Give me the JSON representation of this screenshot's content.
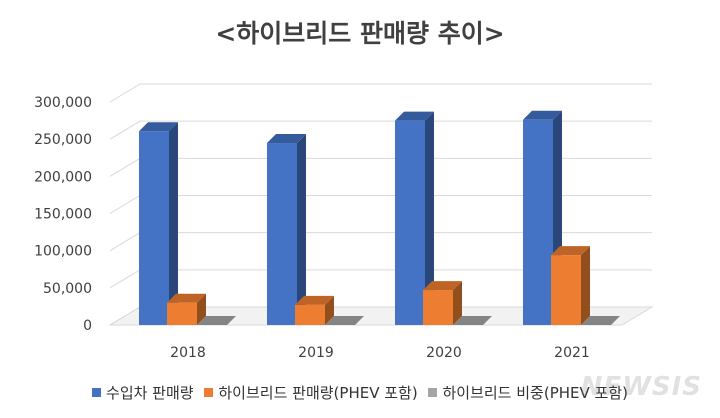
{
  "title": "<하이브리드 판매량 추이>",
  "watermark": "NEWSIS",
  "colors": {
    "series_0": "#4472C4",
    "series_1": "#ED7D31",
    "series_2": "#A5A5A5"
  },
  "chart_data": {
    "type": "bar",
    "title": "<하이브리드 판매량 추이>",
    "categories": [
      "2018",
      "2019",
      "2020",
      "2021"
    ],
    "ylim": [
      0,
      300000
    ],
    "yticks": [
      0,
      50000,
      100000,
      150000,
      200000,
      250000,
      300000
    ],
    "ytick_labels": [
      "0",
      "50,000",
      "100,000",
      "150,000",
      "200,000",
      "250,000",
      "300,000"
    ],
    "grid": true,
    "legend_position": "bottom",
    "series": [
      {
        "name": "수입차 판매량",
        "values": [
          260700,
          244800,
          274900,
          276100
        ]
      },
      {
        "name": "하이브리드 판매량(PHEV 포함)",
        "values": [
          30000,
          27000,
          47000,
          94000
        ]
      },
      {
        "name": "하이브리드 비중(PHEV 포함)",
        "values": [
          0,
          0,
          0,
          0
        ]
      }
    ]
  }
}
